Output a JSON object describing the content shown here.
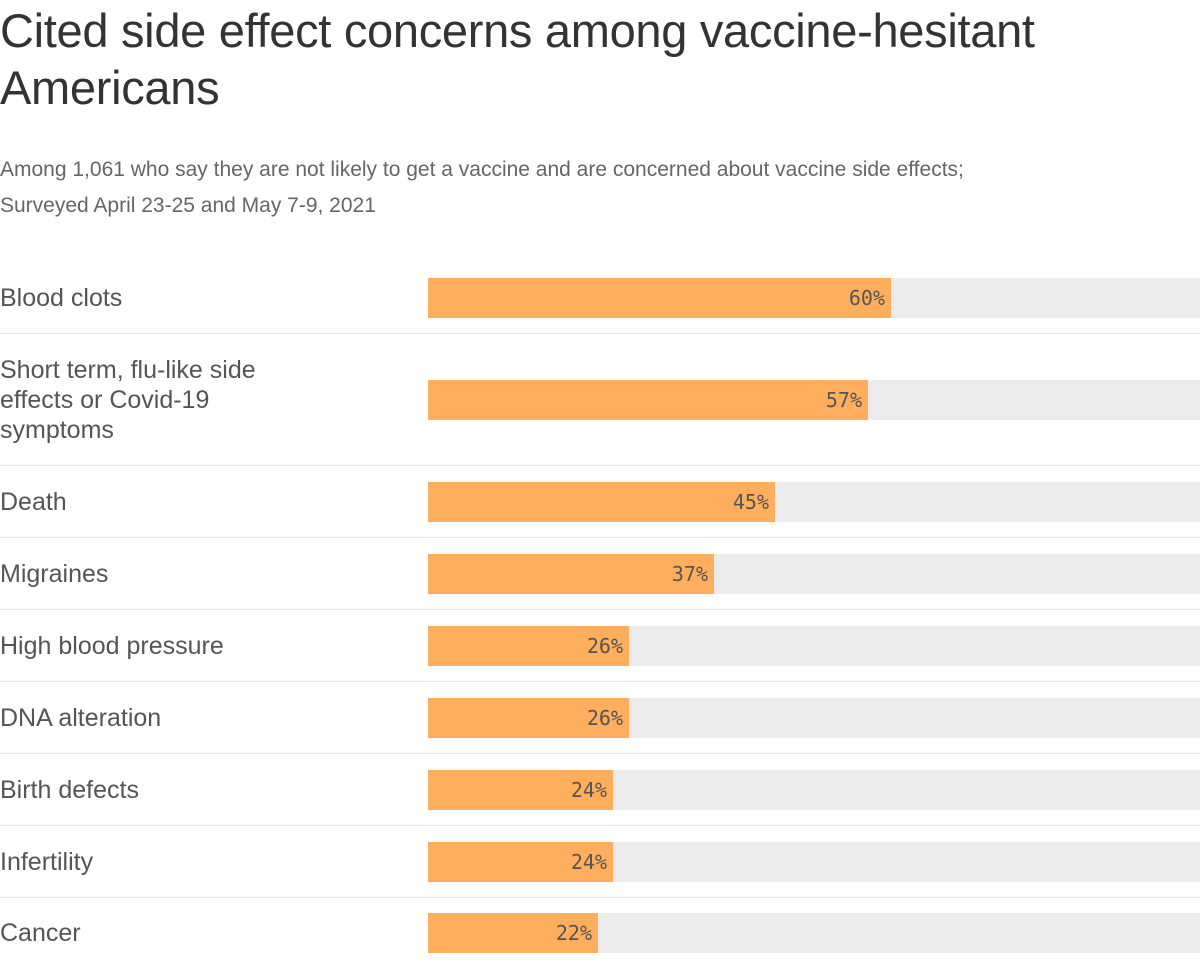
{
  "title": "Cited side effect concerns among vaccine-hesitant Americans",
  "subtitle_line1": "Among 1,061 who say they are not likely to get a vaccine and are concerned about vaccine side effects;",
  "subtitle_line2": "Surveyed April 23-25 and May 7-9, 2021",
  "colors": {
    "bar": "#ffae5e",
    "track": "#ececec",
    "text": "#333333"
  },
  "chart_data": {
    "type": "bar",
    "orientation": "horizontal",
    "categories": [
      "Blood clots",
      "Short term, flu-like side effects or Covid-19 symptoms",
      "Death",
      "Migraines",
      "High blood pressure",
      "DNA alteration",
      "Birth defects",
      "Infertility",
      "Cancer"
    ],
    "values": [
      60,
      57,
      45,
      37,
      26,
      26,
      24,
      24,
      22
    ],
    "value_labels": [
      "60%",
      "57%",
      "45%",
      "37%",
      "26%",
      "26%",
      "24%",
      "24%",
      "22%"
    ],
    "xlim": [
      0,
      100
    ],
    "unit": "%"
  }
}
